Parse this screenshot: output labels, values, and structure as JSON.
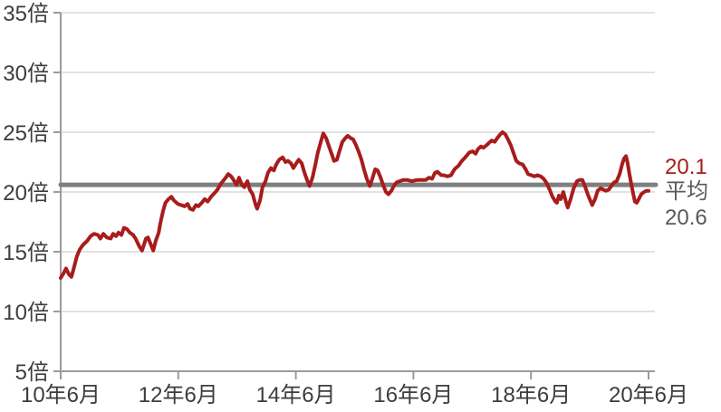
{
  "chart_data": {
    "type": "line",
    "ylabel_unit": "倍",
    "ylim": [
      5,
      35
    ],
    "y_ticks": [
      5,
      10,
      15,
      20,
      25,
      30,
      35
    ],
    "y_tick_labels": [
      "5倍",
      "10倍",
      "15倍",
      "20倍",
      "25倍",
      "30倍",
      "35倍"
    ],
    "x_tick_months": [
      0,
      24,
      48,
      72,
      96,
      120
    ],
    "x_tick_labels": [
      "10年6月",
      "12年6月",
      "14年6月",
      "16年6月",
      "18年6月",
      "20年6月"
    ],
    "grid": true,
    "average": 20.6,
    "last_value": 20.1,
    "x_axis_note": "months since 2010-06 (10年6月=0, 20年6月=120)",
    "series": [
      {
        "color": "#a81c1c",
        "points": [
          [
            0,
            12.8
          ],
          [
            0.6,
            13.2
          ],
          [
            1.1,
            13.6
          ],
          [
            1.7,
            13.1
          ],
          [
            2.2,
            12.9
          ],
          [
            2.8,
            13.8
          ],
          [
            3.3,
            14.6
          ],
          [
            3.9,
            15.2
          ],
          [
            4.6,
            15.6
          ],
          [
            5.4,
            15.9
          ],
          [
            6.1,
            16.3
          ],
          [
            6.8,
            16.5
          ],
          [
            7.6,
            16.4
          ],
          [
            8.1,
            16.1
          ],
          [
            8.7,
            16.5
          ],
          [
            9.4,
            16.2
          ],
          [
            10.2,
            16.1
          ],
          [
            10.7,
            16.5
          ],
          [
            11.3,
            16.3
          ],
          [
            11.8,
            16.6
          ],
          [
            12.4,
            16.4
          ],
          [
            12.9,
            17.0
          ],
          [
            13.5,
            16.9
          ],
          [
            14.1,
            16.6
          ],
          [
            14.8,
            16.4
          ],
          [
            15.3,
            16.1
          ],
          [
            16.1,
            15.4
          ],
          [
            16.6,
            15.1
          ],
          [
            17.4,
            16.1
          ],
          [
            17.8,
            16.2
          ],
          [
            18.3,
            15.7
          ],
          [
            18.9,
            15.1
          ],
          [
            19.4,
            15.9
          ],
          [
            20,
            16.6
          ],
          [
            20.3,
            17.3
          ],
          [
            20.9,
            18.4
          ],
          [
            21.4,
            19.1
          ],
          [
            22,
            19.4
          ],
          [
            22.6,
            19.6
          ],
          [
            23.1,
            19.3
          ],
          [
            23.9,
            19.0
          ],
          [
            24.6,
            18.9
          ],
          [
            25.3,
            18.8
          ],
          [
            25.9,
            19.0
          ],
          [
            26.4,
            18.6
          ],
          [
            27,
            18.5
          ],
          [
            27.6,
            18.9
          ],
          [
            28.1,
            18.8
          ],
          [
            28.8,
            19.1
          ],
          [
            29.4,
            19.4
          ],
          [
            30,
            19.2
          ],
          [
            30.7,
            19.6
          ],
          [
            31.4,
            19.9
          ],
          [
            32,
            20.2
          ],
          [
            32.7,
            20.7
          ],
          [
            33.5,
            21.1
          ],
          [
            34.2,
            21.5
          ],
          [
            34.8,
            21.3
          ],
          [
            35.3,
            21.0
          ],
          [
            35.9,
            20.6
          ],
          [
            36.4,
            21.2
          ],
          [
            37,
            20.6
          ],
          [
            37.5,
            20.4
          ],
          [
            38.1,
            20.9
          ],
          [
            38.6,
            20.2
          ],
          [
            39.2,
            19.8
          ],
          [
            39.8,
            18.9
          ],
          [
            40.1,
            18.6
          ],
          [
            40.7,
            19.3
          ],
          [
            41.2,
            20.4
          ],
          [
            41.8,
            20.9
          ],
          [
            42.3,
            21.6
          ],
          [
            42.9,
            22.0
          ],
          [
            43.5,
            21.8
          ],
          [
            44,
            22.3
          ],
          [
            44.6,
            22.7
          ],
          [
            45.3,
            22.9
          ],
          [
            45.9,
            22.5
          ],
          [
            46.4,
            22.6
          ],
          [
            47,
            22.4
          ],
          [
            47.5,
            22.0
          ],
          [
            48.1,
            22.4
          ],
          [
            48.6,
            22.7
          ],
          [
            49.2,
            22.4
          ],
          [
            49.7,
            21.7
          ],
          [
            50.3,
            21.0
          ],
          [
            50.8,
            20.5
          ],
          [
            51.4,
            21.2
          ],
          [
            52,
            22.3
          ],
          [
            52.5,
            23.3
          ],
          [
            53.1,
            24.2
          ],
          [
            53.6,
            24.9
          ],
          [
            54.2,
            24.5
          ],
          [
            54.7,
            23.9
          ],
          [
            55.3,
            23.2
          ],
          [
            55.8,
            22.6
          ],
          [
            56.4,
            22.7
          ],
          [
            56.9,
            23.4
          ],
          [
            57.5,
            24.2
          ],
          [
            58.1,
            24.5
          ],
          [
            58.6,
            24.7
          ],
          [
            59.2,
            24.5
          ],
          [
            59.7,
            24.4
          ],
          [
            60.3,
            23.9
          ],
          [
            60.8,
            23.4
          ],
          [
            61.4,
            22.7
          ],
          [
            61.9,
            21.9
          ],
          [
            62.5,
            21.1
          ],
          [
            63.1,
            20.5
          ],
          [
            63.6,
            21.1
          ],
          [
            64.2,
            21.9
          ],
          [
            64.7,
            21.8
          ],
          [
            65.3,
            21.2
          ],
          [
            65.8,
            20.6
          ],
          [
            66.4,
            20.0
          ],
          [
            66.9,
            19.8
          ],
          [
            67.5,
            20.1
          ],
          [
            68,
            20.5
          ],
          [
            68.6,
            20.8
          ],
          [
            69.2,
            20.9
          ],
          [
            69.9,
            21.0
          ],
          [
            70.8,
            21.0
          ],
          [
            71.7,
            20.9
          ],
          [
            72.7,
            21.0
          ],
          [
            73.6,
            21.0
          ],
          [
            74.5,
            21.0
          ],
          [
            75.2,
            21.2
          ],
          [
            75.8,
            21.1
          ],
          [
            76.4,
            21.6
          ],
          [
            76.9,
            21.7
          ],
          [
            77.7,
            21.4
          ],
          [
            78.2,
            21.4
          ],
          [
            79,
            21.3
          ],
          [
            79.7,
            21.4
          ],
          [
            80.4,
            21.9
          ],
          [
            81.2,
            22.2
          ],
          [
            81.9,
            22.6
          ],
          [
            82.6,
            22.9
          ],
          [
            83.4,
            23.3
          ],
          [
            84.1,
            23.4
          ],
          [
            84.7,
            23.2
          ],
          [
            85.2,
            23.6
          ],
          [
            85.8,
            23.8
          ],
          [
            86.3,
            23.7
          ],
          [
            86.9,
            23.9
          ],
          [
            87.4,
            24.1
          ],
          [
            88,
            24.3
          ],
          [
            88.6,
            24.2
          ],
          [
            89.1,
            24.5
          ],
          [
            89.7,
            24.8
          ],
          [
            90.2,
            25.0
          ],
          [
            90.8,
            24.8
          ],
          [
            91.3,
            24.4
          ],
          [
            91.9,
            23.9
          ],
          [
            92.4,
            23.3
          ],
          [
            93,
            22.6
          ],
          [
            93.6,
            22.4
          ],
          [
            94.3,
            22.3
          ],
          [
            94.9,
            21.9
          ],
          [
            95.4,
            21.5
          ],
          [
            96.1,
            21.4
          ],
          [
            96.7,
            21.3
          ],
          [
            97.3,
            21.4
          ],
          [
            98,
            21.3
          ],
          [
            98.6,
            21.1
          ],
          [
            99.1,
            20.8
          ],
          [
            99.8,
            20.2
          ],
          [
            100.4,
            19.6
          ],
          [
            101,
            19.2
          ],
          [
            101.3,
            19.1
          ],
          [
            101.7,
            19.7
          ],
          [
            102.1,
            19.4
          ],
          [
            102.6,
            20.0
          ],
          [
            103.2,
            19.1
          ],
          [
            103.5,
            18.7
          ],
          [
            104.1,
            19.4
          ],
          [
            104.7,
            20.3
          ],
          [
            105.4,
            20.9
          ],
          [
            105.9,
            21.0
          ],
          [
            106.5,
            21.0
          ],
          [
            107,
            20.5
          ],
          [
            107.6,
            19.8
          ],
          [
            108.2,
            19.2
          ],
          [
            108.5,
            18.9
          ],
          [
            109.1,
            19.4
          ],
          [
            109.6,
            20.1
          ],
          [
            110.2,
            20.3
          ],
          [
            110.8,
            20.2
          ],
          [
            111.3,
            20.1
          ],
          [
            111.9,
            20.2
          ],
          [
            112.4,
            20.5
          ],
          [
            113,
            20.8
          ],
          [
            113.5,
            20.9
          ],
          [
            114.1,
            21.5
          ],
          [
            114.6,
            22.3
          ],
          [
            115,
            22.8
          ],
          [
            115.4,
            23.0
          ],
          [
            115.7,
            22.5
          ],
          [
            116.1,
            21.5
          ],
          [
            116.5,
            20.6
          ],
          [
            116.9,
            19.8
          ],
          [
            117.2,
            19.2
          ],
          [
            117.6,
            19.1
          ],
          [
            118,
            19.4
          ],
          [
            118.5,
            19.8
          ],
          [
            119.1,
            20.0
          ],
          [
            119.6,
            20.1
          ],
          [
            120,
            20.1
          ]
        ]
      }
    ]
  },
  "annotations": {
    "last_value_label": "20.1",
    "average_label": "平均",
    "average_value_label": "20.6"
  },
  "colors": {
    "line_red": "#a81c1c",
    "average_gray": "#7f7f7f",
    "annot_gray": "#595959",
    "tick_text": "#3d3d3d",
    "gridline": "#d9d9d9",
    "axis": "#9b9b9b",
    "background": "#ffffff"
  }
}
